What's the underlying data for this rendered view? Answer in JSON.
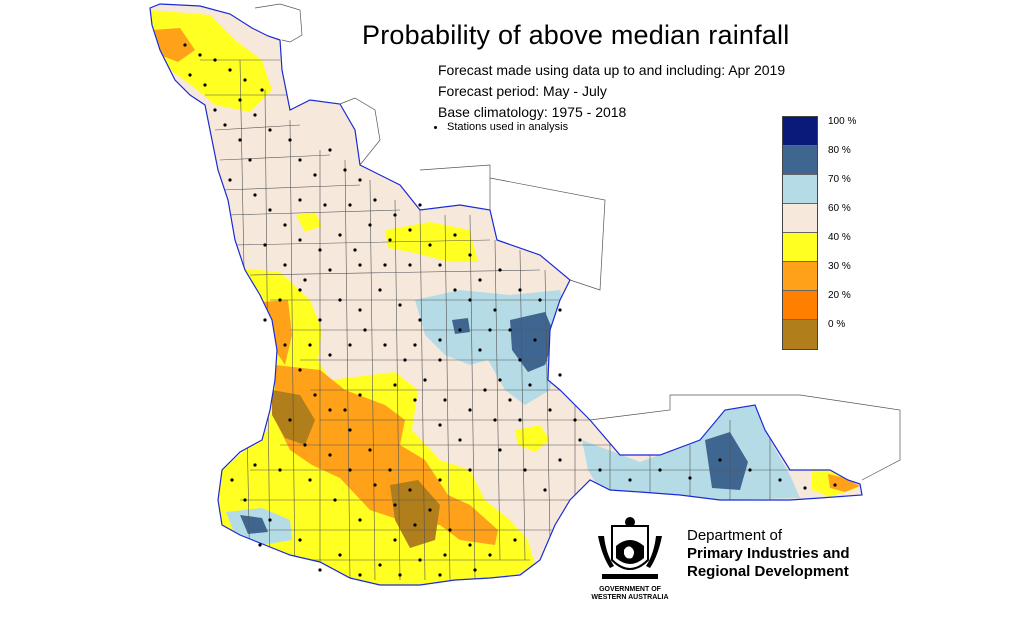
{
  "title": "Probability of above median rainfall",
  "info": {
    "forecast_made": "Forecast made using data up to and including: Apr 2019",
    "forecast_period": "Forecast period: May - July",
    "base_climatology": "Base climatology: 1975 - 2018",
    "stations_label": "Stations used in analysis"
  },
  "legend": {
    "labels": [
      "100 %",
      "80 %",
      "70 %",
      "60 %",
      "40 %",
      "30 %",
      "20 %",
      "0 %"
    ],
    "colors": [
      "#0a1a7a",
      "#3f6690",
      "#b5dce6",
      "#f7e8dc",
      "#ffff22",
      "#ffa21a",
      "#ff8000",
      "#b07e1b"
    ]
  },
  "colors": {
    "cat_60_70": "#b5dce6",
    "cat_70_80": "#3f6690",
    "cat_40_60": "#f7e8dc",
    "cat_30_40": "#ffff22",
    "cat_20_30": "#ffa21a",
    "cat_0_20": "#b07e1b"
  },
  "org": {
    "line1": "Department of",
    "line2": "Primary Industries and",
    "line3": "Regional Development",
    "gov1": "GOVERNMENT OF",
    "gov2": "WESTERN AUSTRALIA"
  }
}
